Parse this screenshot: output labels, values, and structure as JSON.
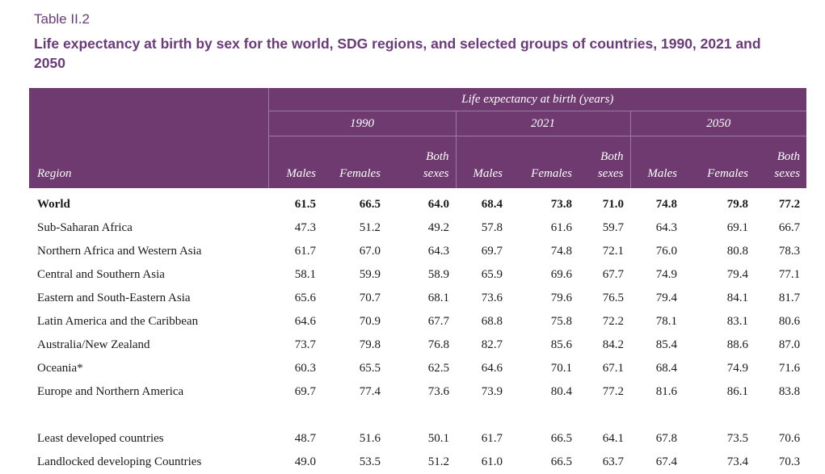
{
  "caption": "Table II.2",
  "title": "Life expectancy at birth by sex for the world, SDG regions, and selected groups of countries, 1990, 2021 and 2050",
  "header": {
    "group": "Life expectancy at birth (years)",
    "years": [
      "1990",
      "2021",
      "2050"
    ],
    "region_label": "Region",
    "males": "Males",
    "females": "Females",
    "both_line1": "Both",
    "both_line2": "sexes"
  },
  "rows": [
    {
      "region": "World",
      "values": [
        "61.5",
        "66.5",
        "64.0",
        "68.4",
        "73.8",
        "71.0",
        "74.8",
        "79.8",
        "77.2"
      ]
    },
    {
      "region": "Sub-Saharan Africa",
      "values": [
        "47.3",
        "51.2",
        "49.2",
        "57.8",
        "61.6",
        "59.7",
        "64.3",
        "69.1",
        "66.7"
      ]
    },
    {
      "region": "Northern Africa and Western Asia",
      "values": [
        "61.7",
        "67.0",
        "64.3",
        "69.7",
        "74.8",
        "72.1",
        "76.0",
        "80.8",
        "78.3"
      ]
    },
    {
      "region": "Central and Southern Asia",
      "values": [
        "58.1",
        "59.9",
        "58.9",
        "65.9",
        "69.6",
        "67.7",
        "74.9",
        "79.4",
        "77.1"
      ]
    },
    {
      "region": "Eastern and South-Eastern Asia",
      "values": [
        "65.6",
        "70.7",
        "68.1",
        "73.6",
        "79.6",
        "76.5",
        "79.4",
        "84.1",
        "81.7"
      ]
    },
    {
      "region": "Latin America and the Caribbean",
      "values": [
        "64.6",
        "70.9",
        "67.7",
        "68.8",
        "75.8",
        "72.2",
        "78.1",
        "83.1",
        "80.6"
      ]
    },
    {
      "region": "Australia/New Zealand",
      "values": [
        "73.7",
        "79.8",
        "76.8",
        "82.7",
        "85.6",
        "84.2",
        "85.4",
        "88.6",
        "87.0"
      ]
    },
    {
      "region": "Oceania*",
      "values": [
        "60.3",
        "65.5",
        "62.5",
        "64.6",
        "70.1",
        "67.1",
        "68.4",
        "74.9",
        "71.6"
      ]
    },
    {
      "region": "Europe and Northern America",
      "values": [
        "69.7",
        "77.4",
        "73.6",
        "73.9",
        "80.4",
        "77.2",
        "81.6",
        "86.1",
        "83.8"
      ]
    }
  ],
  "rows2": [
    {
      "region": "Least developed countries",
      "values": [
        "48.7",
        "51.6",
        "50.1",
        "61.7",
        "66.5",
        "64.1",
        "67.8",
        "73.5",
        "70.6"
      ]
    },
    {
      "region": "Landlocked developing Countries",
      "values": [
        "49.0",
        "53.5",
        "51.2",
        "61.0",
        "66.5",
        "63.7",
        "67.4",
        "73.4",
        "70.3"
      ]
    }
  ]
}
